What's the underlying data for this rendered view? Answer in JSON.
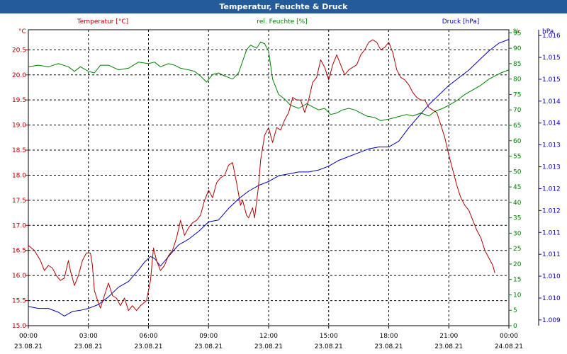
{
  "window": {
    "title": "Temperatur, Feuchte & Druck"
  },
  "chart_data": {
    "type": "line",
    "title": "Temperatur, Feuchte & Druck",
    "grid": true,
    "x_ticks": [
      {
        "time": "00:00",
        "date": "23.08.21"
      },
      {
        "time": "03:00",
        "date": "23.08.21"
      },
      {
        "time": "06:00",
        "date": "23.08.21"
      },
      {
        "time": "09:00",
        "date": "23.08.21"
      },
      {
        "time": "12:00",
        "date": "23.08.21"
      },
      {
        "time": "15:00",
        "date": "23.08.21"
      },
      {
        "time": "18:00",
        "date": "23.08.21"
      },
      {
        "time": "21:00",
        "date": "23.08.21"
      },
      {
        "time": "00:00",
        "date": "24.08.21"
      }
    ],
    "x_range_hours": [
      0,
      24
    ],
    "axes": {
      "temperature": {
        "label": "Temperatur [°C]",
        "unit": "°C",
        "color": "#b00000",
        "range": [
          15.0,
          20.9
        ],
        "ticks": [
          "15.0",
          "15.5",
          "16.0",
          "16.5",
          "17.0",
          "17.5",
          "18.0",
          "18.5",
          "19.0",
          "19.5",
          "20.0",
          "20.5"
        ]
      },
      "humidity": {
        "label": "rel. Feuchte [%]",
        "unit": "%",
        "color": "#008000",
        "range": [
          0,
          96
        ],
        "ticks": [
          "0",
          "5",
          "10",
          "15",
          "20",
          "25",
          "30",
          "35",
          "40",
          "45",
          "50",
          "55",
          "60",
          "65",
          "70",
          "75",
          "80",
          "85",
          "90",
          "95"
        ]
      },
      "pressure": {
        "label": "Druck [hPa]",
        "unit": "hPa",
        "color": "#0000b0",
        "range": [
          1008.6,
          1016.3
        ],
        "ticks": [
          "1.009",
          "1.010",
          "1.010",
          "1.011",
          "1.011",
          "1.012",
          "1.012",
          "1.013",
          "1.013",
          "1.014",
          "1.014",
          "1.015",
          "1.015",
          "1.016"
        ]
      }
    },
    "series": [
      {
        "name": "Temperatur [°C]",
        "axis": "temperature",
        "color": "#b00000",
        "points": [
          [
            0,
            16.6
          ],
          [
            0.3,
            16.5
          ],
          [
            0.6,
            16.3
          ],
          [
            0.8,
            16.1
          ],
          [
            1.0,
            16.2
          ],
          [
            1.2,
            16.15
          ],
          [
            1.4,
            16.0
          ],
          [
            1.6,
            15.9
          ],
          [
            1.8,
            15.95
          ],
          [
            2.0,
            16.3
          ],
          [
            2.1,
            16.1
          ],
          [
            2.3,
            15.8
          ],
          [
            2.5,
            16.0
          ],
          [
            2.7,
            16.3
          ],
          [
            2.9,
            16.45
          ],
          [
            3.1,
            16.45
          ],
          [
            3.2,
            16.2
          ],
          [
            3.3,
            15.7
          ],
          [
            3.5,
            15.45
          ],
          [
            3.6,
            15.35
          ],
          [
            3.8,
            15.6
          ],
          [
            4.0,
            15.85
          ],
          [
            4.2,
            15.6
          ],
          [
            4.4,
            15.55
          ],
          [
            4.6,
            15.4
          ],
          [
            4.8,
            15.55
          ],
          [
            5.0,
            15.3
          ],
          [
            5.2,
            15.4
          ],
          [
            5.4,
            15.3
          ],
          [
            5.6,
            15.4
          ],
          [
            5.9,
            15.5
          ],
          [
            6.1,
            15.9
          ],
          [
            6.25,
            16.55
          ],
          [
            6.4,
            16.3
          ],
          [
            6.6,
            16.1
          ],
          [
            6.8,
            16.2
          ],
          [
            7.0,
            16.4
          ],
          [
            7.2,
            16.5
          ],
          [
            7.4,
            16.75
          ],
          [
            7.6,
            17.1
          ],
          [
            7.8,
            16.8
          ],
          [
            8.0,
            16.95
          ],
          [
            8.2,
            17.05
          ],
          [
            8.4,
            17.1
          ],
          [
            8.6,
            17.2
          ],
          [
            8.8,
            17.5
          ],
          [
            9.0,
            17.7
          ],
          [
            9.2,
            17.55
          ],
          [
            9.4,
            17.85
          ],
          [
            9.6,
            17.95
          ],
          [
            9.8,
            18.0
          ],
          [
            10.0,
            18.2
          ],
          [
            10.2,
            18.25
          ],
          [
            10.4,
            17.85
          ],
          [
            10.6,
            17.4
          ],
          [
            10.7,
            17.5
          ],
          [
            10.9,
            17.2
          ],
          [
            11.0,
            17.15
          ],
          [
            11.2,
            17.35
          ],
          [
            11.3,
            17.15
          ],
          [
            11.5,
            17.8
          ],
          [
            11.6,
            18.3
          ],
          [
            11.8,
            18.8
          ],
          [
            12.0,
            18.95
          ],
          [
            12.2,
            18.65
          ],
          [
            12.4,
            18.95
          ],
          [
            12.6,
            18.9
          ],
          [
            12.8,
            19.1
          ],
          [
            13.0,
            19.25
          ],
          [
            13.2,
            19.55
          ],
          [
            13.4,
            19.5
          ],
          [
            13.6,
            19.5
          ],
          [
            13.8,
            19.25
          ],
          [
            14.0,
            19.5
          ],
          [
            14.2,
            19.85
          ],
          [
            14.4,
            19.95
          ],
          [
            14.6,
            20.3
          ],
          [
            14.8,
            20.15
          ],
          [
            15.0,
            19.9
          ],
          [
            15.2,
            20.2
          ],
          [
            15.4,
            20.4
          ],
          [
            15.6,
            20.2
          ],
          [
            15.8,
            20.0
          ],
          [
            16.0,
            20.1
          ],
          [
            16.2,
            20.15
          ],
          [
            16.4,
            20.2
          ],
          [
            16.6,
            20.4
          ],
          [
            16.8,
            20.5
          ],
          [
            17.0,
            20.65
          ],
          [
            17.2,
            20.7
          ],
          [
            17.4,
            20.65
          ],
          [
            17.6,
            20.5
          ],
          [
            17.8,
            20.55
          ],
          [
            18.0,
            20.65
          ],
          [
            18.2,
            20.45
          ],
          [
            18.4,
            20.1
          ],
          [
            18.6,
            19.95
          ],
          [
            18.8,
            19.9
          ],
          [
            19.0,
            19.8
          ],
          [
            19.2,
            19.65
          ],
          [
            19.4,
            19.55
          ],
          [
            19.6,
            19.5
          ],
          [
            19.8,
            19.5
          ],
          [
            20.0,
            19.35
          ],
          [
            20.2,
            19.3
          ],
          [
            20.4,
            19.25
          ],
          [
            20.6,
            19.0
          ],
          [
            20.8,
            18.75
          ],
          [
            21.0,
            18.4
          ],
          [
            21.2,
            18.1
          ],
          [
            21.4,
            17.8
          ],
          [
            21.6,
            17.55
          ],
          [
            21.8,
            17.4
          ],
          [
            22.0,
            17.3
          ],
          [
            22.2,
            17.1
          ],
          [
            22.4,
            16.9
          ],
          [
            22.6,
            16.75
          ],
          [
            22.8,
            16.5
          ],
          [
            23.0,
            16.35
          ],
          [
            23.2,
            16.2
          ],
          [
            23.3,
            16.05
          ]
        ]
      },
      {
        "name": "rel. Feuchte [%]",
        "axis": "humidity",
        "color": "#008000",
        "points": [
          [
            0,
            84
          ],
          [
            0.5,
            84.5
          ],
          [
            1.0,
            84
          ],
          [
            1.5,
            85
          ],
          [
            2.0,
            84
          ],
          [
            2.3,
            82.5
          ],
          [
            2.6,
            84
          ],
          [
            3.0,
            82.5
          ],
          [
            3.3,
            82
          ],
          [
            3.6,
            84.5
          ],
          [
            4.0,
            84.5
          ],
          [
            4.5,
            83
          ],
          [
            5.0,
            83.5
          ],
          [
            5.5,
            85.5
          ],
          [
            6.0,
            85
          ],
          [
            6.3,
            85.5
          ],
          [
            6.6,
            84
          ],
          [
            7.0,
            85
          ],
          [
            7.3,
            84.5
          ],
          [
            7.6,
            83.5
          ],
          [
            8.0,
            83
          ],
          [
            8.3,
            82.5
          ],
          [
            8.6,
            81
          ],
          [
            8.9,
            79
          ],
          [
            9.2,
            81.5
          ],
          [
            9.5,
            82
          ],
          [
            9.8,
            81
          ],
          [
            10.2,
            80
          ],
          [
            10.5,
            82
          ],
          [
            10.9,
            89.5
          ],
          [
            11.1,
            91
          ],
          [
            11.4,
            90
          ],
          [
            11.6,
            92
          ],
          [
            11.8,
            91.5
          ],
          [
            12.0,
            89
          ],
          [
            12.2,
            80
          ],
          [
            12.5,
            75
          ],
          [
            12.8,
            73.5
          ],
          [
            13.1,
            71.5
          ],
          [
            13.5,
            70.5
          ],
          [
            13.9,
            72
          ],
          [
            14.2,
            71
          ],
          [
            14.5,
            70
          ],
          [
            14.8,
            70.5
          ],
          [
            15.1,
            68.5
          ],
          [
            15.4,
            69
          ],
          [
            15.7,
            70
          ],
          [
            16.0,
            70.5
          ],
          [
            16.3,
            70
          ],
          [
            16.6,
            69
          ],
          [
            16.9,
            68
          ],
          [
            17.3,
            67.5
          ],
          [
            17.6,
            66.5
          ],
          [
            18.0,
            67
          ],
          [
            18.3,
            67.5
          ],
          [
            18.6,
            68
          ],
          [
            18.9,
            68.5
          ],
          [
            19.2,
            68
          ],
          [
            19.6,
            69
          ],
          [
            20.0,
            68
          ],
          [
            20.3,
            69.5
          ],
          [
            20.7,
            70.5
          ],
          [
            21.0,
            71.5
          ],
          [
            21.4,
            73
          ],
          [
            21.8,
            75
          ],
          [
            22.2,
            76.5
          ],
          [
            22.6,
            78
          ],
          [
            23.0,
            80
          ],
          [
            23.3,
            81
          ],
          [
            23.6,
            82
          ],
          [
            24.0,
            83
          ]
        ]
      },
      {
        "name": "Druck [hPa]",
        "axis": "pressure",
        "color": "#0000b0",
        "points": [
          [
            0,
            1009.1
          ],
          [
            0.5,
            1009.05
          ],
          [
            1.0,
            1009.05
          ],
          [
            1.5,
            1008.95
          ],
          [
            1.8,
            1008.85
          ],
          [
            2.2,
            1008.97
          ],
          [
            2.6,
            1009.0
          ],
          [
            3.0,
            1009.05
          ],
          [
            3.5,
            1009.15
          ],
          [
            4.0,
            1009.35
          ],
          [
            4.5,
            1009.6
          ],
          [
            5.0,
            1009.75
          ],
          [
            5.5,
            1010.05
          ],
          [
            5.8,
            1010.25
          ],
          [
            6.1,
            1010.4
          ],
          [
            6.3,
            1010.35
          ],
          [
            6.6,
            1010.15
          ],
          [
            7.0,
            1010.4
          ],
          [
            7.5,
            1010.7
          ],
          [
            8.0,
            1010.85
          ],
          [
            8.5,
            1011.05
          ],
          [
            9.0,
            1011.3
          ],
          [
            9.5,
            1011.35
          ],
          [
            10.0,
            1011.65
          ],
          [
            10.5,
            1011.9
          ],
          [
            11.0,
            1012.1
          ],
          [
            11.5,
            1012.25
          ],
          [
            12.0,
            1012.35
          ],
          [
            12.5,
            1012.5
          ],
          [
            13.0,
            1012.55
          ],
          [
            13.5,
            1012.6
          ],
          [
            14.0,
            1012.6
          ],
          [
            14.5,
            1012.65
          ],
          [
            15.0,
            1012.75
          ],
          [
            15.5,
            1012.9
          ],
          [
            16.0,
            1013.0
          ],
          [
            16.5,
            1013.1
          ],
          [
            17.0,
            1013.2
          ],
          [
            17.5,
            1013.25
          ],
          [
            18.0,
            1013.25
          ],
          [
            18.5,
            1013.4
          ],
          [
            19.0,
            1013.75
          ],
          [
            19.5,
            1014.05
          ],
          [
            20.0,
            1014.35
          ],
          [
            20.5,
            1014.6
          ],
          [
            21.0,
            1014.85
          ],
          [
            21.5,
            1015.05
          ],
          [
            22.0,
            1015.25
          ],
          [
            22.5,
            1015.5
          ],
          [
            23.0,
            1015.75
          ],
          [
            23.5,
            1015.95
          ],
          [
            24.0,
            1016.05
          ]
        ]
      }
    ]
  }
}
